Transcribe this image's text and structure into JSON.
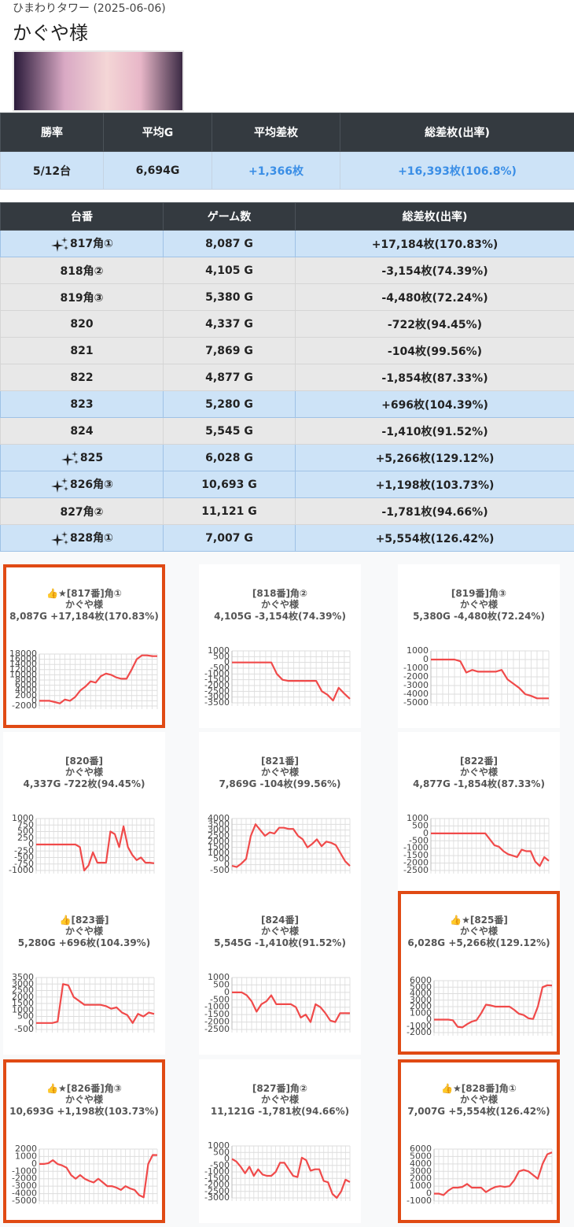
{
  "header": {
    "store": "ひまわりタワー (2025-06-06)",
    "title": "かぐや様"
  },
  "summary": {
    "headers": [
      "勝率",
      "平均G",
      "平均差枚",
      "総差枚(出率)"
    ],
    "values": [
      "5/12台",
      "6,694G",
      "+1,366枚",
      "+16,393枚(106.8%)"
    ]
  },
  "table": {
    "headers": [
      "台番",
      "ゲーム数",
      "総差枚(出率)"
    ],
    "rows": [
      {
        "number": "817角①",
        "games": "8,087 G",
        "diff": "+17,184枚(170.83%)",
        "highlight": true,
        "sparkle": true
      },
      {
        "number": "818角②",
        "games": "4,105 G",
        "diff": "-3,154枚(74.39%)",
        "highlight": false,
        "sparkle": false
      },
      {
        "number": "819角③",
        "games": "5,380 G",
        "diff": "-4,480枚(72.24%)",
        "highlight": false,
        "sparkle": false
      },
      {
        "number": "820",
        "games": "4,337 G",
        "diff": "-722枚(94.45%)",
        "highlight": false,
        "sparkle": false
      },
      {
        "number": "821",
        "games": "7,869 G",
        "diff": "-104枚(99.56%)",
        "highlight": false,
        "sparkle": false
      },
      {
        "number": "822",
        "games": "4,877 G",
        "diff": "-1,854枚(87.33%)",
        "highlight": false,
        "sparkle": false
      },
      {
        "number": "823",
        "games": "5,280 G",
        "diff": "+696枚(104.39%)",
        "highlight": true,
        "sparkle": false
      },
      {
        "number": "824",
        "games": "5,545 G",
        "diff": "-1,410枚(91.52%)",
        "highlight": false,
        "sparkle": false
      },
      {
        "number": "825",
        "games": "6,028 G",
        "diff": "+5,266枚(129.12%)",
        "highlight": true,
        "sparkle": true
      },
      {
        "number": "826角③",
        "games": "10,693 G",
        "diff": "+1,198枚(103.73%)",
        "highlight": true,
        "sparkle": true
      },
      {
        "number": "827角②",
        "games": "11,121 G",
        "diff": "-1,781枚(94.66%)",
        "highlight": false,
        "sparkle": false
      },
      {
        "number": "828角①",
        "games": "7,007 G",
        "diff": "+5,554枚(126.42%)",
        "highlight": true,
        "sparkle": true
      }
    ]
  },
  "chart_data": [
    {
      "type": "line",
      "title": "👍★[817番]角①",
      "subtitle": "かぐや様",
      "caption": "8,087G +17,184枚(170.83%)",
      "highlight": true,
      "color": "#f04a4a",
      "grid": true,
      "ylim": [
        -2000,
        18000
      ],
      "yticks": [
        -2000,
        0,
        2000,
        4000,
        6000,
        8000,
        10000,
        12000,
        14000,
        16000,
        18000
      ],
      "values": [
        0,
        0,
        0,
        -500,
        -1000,
        500,
        0,
        1500,
        4000,
        5500,
        7500,
        7000,
        9500,
        10500,
        10000,
        9000,
        8500,
        8500,
        12000,
        16000,
        17500,
        17500,
        17200,
        17184
      ]
    },
    {
      "type": "line",
      "title": "[818番]角②",
      "subtitle": "かぐや様",
      "caption": "4,105G -3,154枚(74.39%)",
      "highlight": false,
      "color": "#f04a4a",
      "grid": true,
      "ylim": [
        -3500,
        1000
      ],
      "yticks": [
        -3500,
        -3000,
        -2500,
        -2000,
        -1500,
        -1000,
        -500,
        0,
        500,
        1000
      ],
      "values": [
        0,
        0,
        0,
        0,
        0,
        0,
        0,
        0,
        -1000,
        -1500,
        -1600,
        -1600,
        -1600,
        -1600,
        -1600,
        -1600,
        -2500,
        -2800,
        -3300,
        -2200,
        -2700,
        -3154
      ]
    },
    {
      "type": "line",
      "title": "[819番]角③",
      "subtitle": "かぐや様",
      "caption": "5,380G -4,480枚(72.24%)",
      "highlight": false,
      "color": "#f04a4a",
      "grid": true,
      "ylim": [
        -5000,
        1000
      ],
      "yticks": [
        -5000,
        -4000,
        -3000,
        -2000,
        -1000,
        0,
        1000
      ],
      "values": [
        0,
        0,
        0,
        0,
        0,
        -200,
        -1500,
        -1200,
        -1400,
        -1400,
        -1400,
        -1400,
        -1200,
        -2300,
        -2800,
        -3300,
        -4000,
        -4200,
        -4480,
        -4480,
        -4480
      ]
    },
    {
      "type": "line",
      "title": "[820番]",
      "subtitle": "かぐや様",
      "caption": "4,337G -722枚(94.45%)",
      "highlight": false,
      "color": "#f04a4a",
      "grid": true,
      "ylim": [
        -1000,
        1000
      ],
      "yticks": [
        -1000,
        -750,
        -500,
        -250,
        0,
        250,
        500,
        750,
        1000
      ],
      "values": [
        0,
        0,
        0,
        0,
        0,
        0,
        0,
        0,
        0,
        0,
        -100,
        -1000,
        -800,
        -300,
        -700,
        -700,
        -700,
        500,
        400,
        -100,
        700,
        -100,
        -400,
        -600,
        -500,
        -700,
        -700,
        -722
      ]
    },
    {
      "type": "line",
      "title": "[821番]",
      "subtitle": "かぐや様",
      "caption": "7,869G -104枚(99.56%)",
      "highlight": false,
      "color": "#f04a4a",
      "grid": true,
      "ylim": [
        -500,
        4000
      ],
      "yticks": [
        -500,
        0,
        500,
        1000,
        1500,
        2000,
        2500,
        3000,
        3500,
        4000
      ],
      "values": [
        -100,
        -200,
        100,
        500,
        2500,
        3500,
        3000,
        2500,
        2800,
        2700,
        3200,
        3200,
        3100,
        3100,
        2500,
        2200,
        1500,
        1800,
        2200,
        1600,
        2000,
        1900,
        1700,
        1000,
        300,
        -104
      ]
    },
    {
      "type": "line",
      "title": "[822番]",
      "subtitle": "かぐや様",
      "caption": "4,877G -1,854枚(87.33%)",
      "highlight": false,
      "color": "#f04a4a",
      "grid": true,
      "ylim": [
        -2500,
        1000
      ],
      "yticks": [
        -2500,
        -2000,
        -1500,
        -1000,
        -500,
        0,
        500,
        1000
      ],
      "values": [
        0,
        0,
        0,
        0,
        0,
        0,
        0,
        0,
        0,
        0,
        0,
        0,
        0,
        -400,
        -800,
        -900,
        -1200,
        -1400,
        -1500,
        -1600,
        -1100,
        -1200,
        -1200,
        -1900,
        -2200,
        -1600,
        -1854
      ]
    },
    {
      "type": "line",
      "title": "👍[823番]",
      "subtitle": "かぐや様",
      "caption": "5,280G +696枚(104.39%)",
      "highlight": false,
      "color": "#f04a4a",
      "grid": true,
      "ylim": [
        -500,
        3500
      ],
      "yticks": [
        -500,
        0,
        500,
        1000,
        1500,
        2000,
        2500,
        3000,
        3500
      ],
      "values": [
        0,
        0,
        0,
        0,
        100,
        3000,
        2900,
        2000,
        1700,
        1400,
        1400,
        1400,
        1400,
        1300,
        1100,
        1200,
        800,
        600,
        0,
        700,
        500,
        800,
        696
      ]
    },
    {
      "type": "line",
      "title": "[824番]",
      "subtitle": "かぐや様",
      "caption": "5,545G -1,410枚(91.52%)",
      "highlight": false,
      "color": "#f04a4a",
      "grid": true,
      "ylim": [
        -2500,
        1000
      ],
      "yticks": [
        -2500,
        -2000,
        -1500,
        -1000,
        -500,
        0,
        500,
        1000
      ],
      "values": [
        0,
        0,
        0,
        -200,
        -600,
        -1300,
        -800,
        -600,
        -200,
        -800,
        -800,
        -800,
        -800,
        -1000,
        -1700,
        -1500,
        -2000,
        -800,
        -1000,
        -1400,
        -1900,
        -2000,
        -1400,
        -1400,
        -1410
      ]
    },
    {
      "type": "line",
      "title": "👍★[825番]",
      "subtitle": "かぐや様",
      "caption": "6,028G +5,266枚(129.12%)",
      "highlight": true,
      "color": "#f04a4a",
      "grid": true,
      "ylim": [
        -2000,
        6000
      ],
      "yticks": [
        -2000,
        -1000,
        0,
        1000,
        2000,
        3000,
        4000,
        5000,
        6000
      ],
      "values": [
        0,
        0,
        0,
        0,
        -100,
        -1100,
        -1200,
        -700,
        -300,
        -100,
        1000,
        2300,
        2200,
        2000,
        2000,
        2000,
        2000,
        1500,
        900,
        700,
        200,
        100,
        2000,
        5000,
        5300,
        5266
      ]
    },
    {
      "type": "line",
      "title": "👍★[826番]角③",
      "subtitle": "かぐや様",
      "caption": "10,693G +1,198枚(103.73%)",
      "highlight": true,
      "color": "#f04a4a",
      "grid": true,
      "ylim": [
        -5000,
        2000
      ],
      "yticks": [
        -5000,
        -4000,
        -3000,
        -2000,
        -1000,
        0,
        1000,
        2000
      ],
      "values": [
        0,
        0,
        100,
        500,
        0,
        -200,
        -500,
        -1500,
        -2000,
        -1500,
        -2000,
        -2300,
        -2500,
        -2000,
        -2500,
        -3000,
        -3000,
        -3200,
        -3500,
        -3000,
        -3300,
        -3500,
        -4200,
        -4500,
        0,
        1200,
        1198
      ]
    },
    {
      "type": "line",
      "title": "[827番]角②",
      "subtitle": "かぐや様",
      "caption": "11,121G -1,781枚(94.66%)",
      "highlight": false,
      "color": "#f04a4a",
      "grid": true,
      "ylim": [
        -3000,
        1000
      ],
      "yticks": [
        -3000,
        -2500,
        -2000,
        -1500,
        -1000,
        -500,
        0,
        500,
        1000
      ],
      "values": [
        0,
        -200,
        -600,
        -1100,
        -600,
        -1300,
        -800,
        -1200,
        -1300,
        -1300,
        -1000,
        -300,
        -300,
        -800,
        -1300,
        -1400,
        100,
        -100,
        -900,
        -800,
        -800,
        -1700,
        -1800,
        -2700,
        -3000,
        -2500,
        -1600,
        -1781
      ]
    },
    {
      "type": "line",
      "title": "👍★[828番]角①",
      "subtitle": "かぐや様",
      "caption": "7,007G +5,554枚(126.42%)",
      "highlight": true,
      "color": "#f04a4a",
      "grid": true,
      "ylim": [
        -1000,
        6000
      ],
      "yticks": [
        -1000,
        0,
        1000,
        2000,
        3000,
        4000,
        5000,
        6000
      ],
      "values": [
        0,
        0,
        -200,
        400,
        800,
        800,
        900,
        1300,
        800,
        800,
        800,
        200,
        600,
        900,
        1000,
        900,
        1000,
        1800,
        3000,
        3200,
        3000,
        2500,
        2000,
        4000,
        5300,
        5554
      ]
    }
  ]
}
